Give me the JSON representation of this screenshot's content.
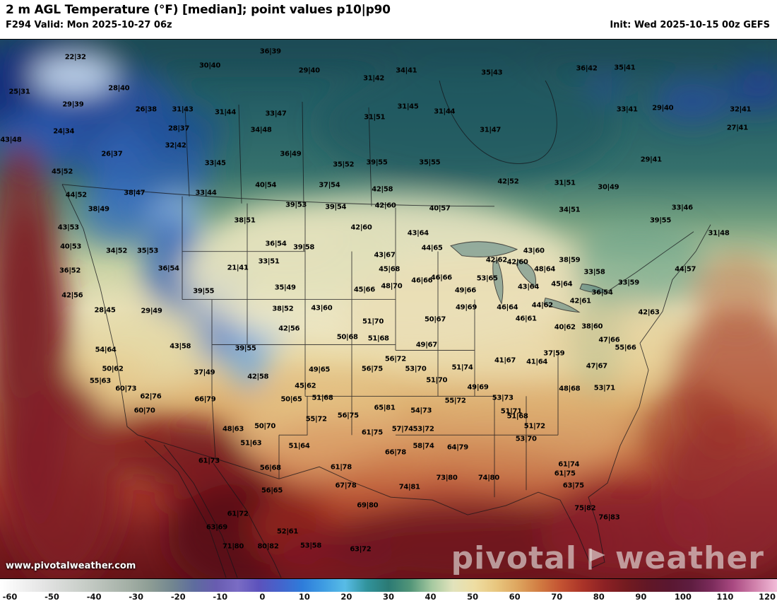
{
  "header": {
    "title": "2 m AGL Temperature (°F) [median]; point values p10|p90",
    "valid_label": "F294 Valid: Mon 2025-10-27 06z",
    "init_label": "Init: Wed 2025-10-15 00z GEFS"
  },
  "branding": {
    "watermark": "www.pivotalweather.com",
    "logo_left": "pivotal",
    "logo_right": "weather"
  },
  "colorbar": {
    "min": -60,
    "max": 120,
    "ticks": [
      -60,
      -50,
      -40,
      -30,
      -20,
      -10,
      0,
      10,
      20,
      30,
      40,
      50,
      60,
      70,
      80,
      90,
      100,
      110,
      120
    ],
    "stops": [
      [
        0,
        "#ffffff"
      ],
      [
        5.6,
        "#e4e4e4"
      ],
      [
        11.1,
        "#c6ccc6"
      ],
      [
        16.7,
        "#a2aea4"
      ],
      [
        19.4,
        "#8c9c94"
      ],
      [
        22.2,
        "#728690"
      ],
      [
        25,
        "#5e6c9e"
      ],
      [
        27.8,
        "#685cb0"
      ],
      [
        30.6,
        "#7a6cc4"
      ],
      [
        33.3,
        "#5c52bc"
      ],
      [
        36.1,
        "#4464cc"
      ],
      [
        38.9,
        "#2e7cda"
      ],
      [
        41.7,
        "#3f9de2"
      ],
      [
        44.4,
        "#58bce6"
      ],
      [
        47.2,
        "#31939c"
      ],
      [
        50,
        "#2b7a74"
      ],
      [
        52.8,
        "#529578"
      ],
      [
        55.6,
        "#a6c9a0"
      ],
      [
        58.3,
        "#e2e3bc"
      ],
      [
        61.1,
        "#eedda2"
      ],
      [
        63.9,
        "#e8c67e"
      ],
      [
        66.7,
        "#dda45e"
      ],
      [
        69.4,
        "#d17c42"
      ],
      [
        72.2,
        "#c35232"
      ],
      [
        75,
        "#aa3328"
      ],
      [
        77.8,
        "#8c2124"
      ],
      [
        80.6,
        "#731b20"
      ],
      [
        83.3,
        "#621726"
      ],
      [
        86.1,
        "#5a1730"
      ],
      [
        88.9,
        "#5e1d40"
      ],
      [
        91.7,
        "#7c2c5c"
      ],
      [
        94.4,
        "#aa4a82"
      ],
      [
        97.2,
        "#d182ac"
      ],
      [
        100,
        "#f2bcd8"
      ]
    ]
  },
  "map": {
    "units": "°F",
    "value_format": "p10|p90",
    "points": [
      [
        9.7,
        9.5,
        "22|32"
      ],
      [
        27.0,
        10.9,
        "30|40"
      ],
      [
        34.8,
        8.6,
        "36|39"
      ],
      [
        39.8,
        11.8,
        "29|40"
      ],
      [
        48.1,
        13.1,
        "31|42"
      ],
      [
        52.3,
        11.8,
        "34|41"
      ],
      [
        63.3,
        12.1,
        "35|43"
      ],
      [
        75.5,
        11.4,
        "36|42"
      ],
      [
        80.4,
        11.3,
        "35|41"
      ],
      [
        2.5,
        15.3,
        "25|31"
      ],
      [
        15.3,
        14.7,
        "28|40"
      ],
      [
        9.4,
        17.4,
        "29|39"
      ],
      [
        18.8,
        18.2,
        "26|38"
      ],
      [
        23.5,
        18.2,
        "31|43"
      ],
      [
        29.0,
        18.7,
        "31|44"
      ],
      [
        35.5,
        18.9,
        "33|47"
      ],
      [
        48.2,
        19.5,
        "31|51"
      ],
      [
        52.5,
        17.8,
        "31|45"
      ],
      [
        57.2,
        18.6,
        "31|44"
      ],
      [
        80.7,
        18.2,
        "33|41"
      ],
      [
        85.3,
        18.0,
        "29|40"
      ],
      [
        95.3,
        18.2,
        "32|41"
      ],
      [
        94.9,
        21.3,
        "27|41"
      ],
      [
        8.2,
        21.9,
        "24|34"
      ],
      [
        23.0,
        21.4,
        "28|37"
      ],
      [
        33.6,
        21.6,
        "34|48"
      ],
      [
        63.1,
        21.6,
        "31|47"
      ],
      [
        1.4,
        23.3,
        "43|48"
      ],
      [
        14.4,
        25.6,
        "26|37"
      ],
      [
        22.6,
        24.2,
        "32|42"
      ],
      [
        37.4,
        25.6,
        "36|49"
      ],
      [
        83.8,
        26.6,
        "29|41"
      ],
      [
        8.0,
        28.6,
        "45|52"
      ],
      [
        27.7,
        27.2,
        "33|45"
      ],
      [
        44.2,
        27.4,
        "35|52"
      ],
      [
        48.5,
        27.1,
        "39|55"
      ],
      [
        55.3,
        27.1,
        "35|55"
      ],
      [
        65.4,
        30.2,
        "42|52"
      ],
      [
        72.7,
        30.5,
        "31|51"
      ],
      [
        78.3,
        31.2,
        "30|49"
      ],
      [
        17.3,
        32.1,
        "38|47"
      ],
      [
        26.5,
        32.1,
        "33|44"
      ],
      [
        34.2,
        30.8,
        "40|54"
      ],
      [
        42.4,
        30.8,
        "37|54"
      ],
      [
        49.2,
        31.5,
        "42|58"
      ],
      [
        9.8,
        32.5,
        "44|52"
      ],
      [
        12.7,
        34.8,
        "38|49"
      ],
      [
        38.1,
        34.1,
        "39|53"
      ],
      [
        43.2,
        34.5,
        "39|54"
      ],
      [
        49.6,
        34.2,
        "42|60"
      ],
      [
        56.6,
        34.7,
        "40|57"
      ],
      [
        73.3,
        34.9,
        "34|51"
      ],
      [
        87.8,
        34.6,
        "33|46"
      ],
      [
        85.0,
        36.7,
        "39|55"
      ],
      [
        8.8,
        37.9,
        "43|53"
      ],
      [
        31.5,
        36.7,
        "38|51"
      ],
      [
        46.5,
        37.9,
        "42|60"
      ],
      [
        53.8,
        38.8,
        "43|64"
      ],
      [
        92.5,
        38.8,
        "31|48"
      ],
      [
        9.1,
        41.1,
        "40|53"
      ],
      [
        15.0,
        41.8,
        "34|52"
      ],
      [
        19.0,
        41.8,
        "35|53"
      ],
      [
        35.5,
        40.6,
        "36|54"
      ],
      [
        39.1,
        41.2,
        "39|58"
      ],
      [
        34.6,
        43.5,
        "33|51"
      ],
      [
        55.6,
        41.3,
        "44|65"
      ],
      [
        68.7,
        41.8,
        "43|60"
      ],
      [
        73.3,
        43.3,
        "38|59"
      ],
      [
        76.5,
        45.3,
        "33|58"
      ],
      [
        9.0,
        45.1,
        "36|52"
      ],
      [
        21.7,
        44.7,
        "36|54"
      ],
      [
        30.6,
        44.6,
        "21|41"
      ],
      [
        49.5,
        42.5,
        "43|67"
      ],
      [
        50.1,
        44.8,
        "45|68"
      ],
      [
        56.8,
        46.2,
        "46|66"
      ],
      [
        63.9,
        43.3,
        "42|62"
      ],
      [
        66.6,
        43.6,
        "42|60"
      ],
      [
        70.1,
        44.8,
        "48|64"
      ],
      [
        36.7,
        47.9,
        "35|49"
      ],
      [
        46.9,
        48.2,
        "45|66"
      ],
      [
        50.4,
        47.6,
        "48|70"
      ],
      [
        54.3,
        46.7,
        "46|66"
      ],
      [
        59.9,
        48.4,
        "49|66"
      ],
      [
        62.7,
        46.4,
        "53|65"
      ],
      [
        68.0,
        47.8,
        "43|64"
      ],
      [
        72.3,
        47.3,
        "45|64"
      ],
      [
        77.5,
        48.7,
        "36|54"
      ],
      [
        80.9,
        47.1,
        "33|59"
      ],
      [
        9.3,
        49.2,
        "42|56"
      ],
      [
        13.5,
        51.6,
        "28|45"
      ],
      [
        19.5,
        51.8,
        "29|49"
      ],
      [
        26.2,
        48.5,
        "39|55"
      ],
      [
        36.4,
        51.4,
        "38|52"
      ],
      [
        41.4,
        51.3,
        "43|60"
      ],
      [
        48.0,
        53.5,
        "51|70"
      ],
      [
        56.0,
        53.2,
        "50|67"
      ],
      [
        60.0,
        51.2,
        "49|69"
      ],
      [
        65.3,
        51.2,
        "46|64"
      ],
      [
        69.8,
        50.8,
        "44|62"
      ],
      [
        74.7,
        50.1,
        "42|61"
      ],
      [
        37.2,
        54.7,
        "42|56"
      ],
      [
        44.7,
        56.1,
        "50|68"
      ],
      [
        48.7,
        56.4,
        "51|68"
      ],
      [
        67.7,
        53.1,
        "46|61"
      ],
      [
        72.7,
        54.5,
        "40|62"
      ],
      [
        76.2,
        54.4,
        "38|60"
      ],
      [
        78.4,
        56.6,
        "47|66"
      ],
      [
        80.5,
        57.9,
        "55|66"
      ],
      [
        23.2,
        57.6,
        "43|58"
      ],
      [
        31.6,
        58.0,
        "39|55"
      ],
      [
        13.6,
        58.2,
        "54|64"
      ],
      [
        14.5,
        61.4,
        "50|62"
      ],
      [
        12.9,
        63.4,
        "55|63"
      ],
      [
        26.3,
        62.0,
        "37|49"
      ],
      [
        33.2,
        62.7,
        "42|58"
      ],
      [
        41.1,
        61.5,
        "49|65"
      ],
      [
        39.3,
        64.2,
        "45|62"
      ],
      [
        50.9,
        59.8,
        "56|72"
      ],
      [
        47.9,
        61.4,
        "56|75"
      ],
      [
        53.5,
        61.4,
        "53|70"
      ],
      [
        54.9,
        57.4,
        "49|67"
      ],
      [
        56.2,
        63.3,
        "51|70"
      ],
      [
        59.5,
        61.2,
        "51|74"
      ],
      [
        61.5,
        64.5,
        "49|69"
      ],
      [
        65.0,
        60.0,
        "41|67"
      ],
      [
        69.1,
        60.2,
        "41|64"
      ],
      [
        71.3,
        58.8,
        "37|59"
      ],
      [
        76.8,
        60.9,
        "47|67"
      ],
      [
        77.8,
        64.6,
        "53|71"
      ],
      [
        16.2,
        64.7,
        "60|73"
      ],
      [
        19.4,
        66.0,
        "62|76"
      ],
      [
        26.4,
        66.5,
        "66|79"
      ],
      [
        18.6,
        68.4,
        "60|70"
      ],
      [
        37.5,
        66.5,
        "50|65"
      ],
      [
        41.5,
        66.2,
        "51|68"
      ],
      [
        64.7,
        66.2,
        "53|73"
      ],
      [
        73.3,
        64.7,
        "48|68"
      ],
      [
        30.0,
        71.4,
        "48|63"
      ],
      [
        34.1,
        70.9,
        "50|70"
      ],
      [
        40.7,
        69.8,
        "55|72"
      ],
      [
        44.8,
        69.2,
        "56|75"
      ],
      [
        49.5,
        67.9,
        "65|81"
      ],
      [
        54.2,
        68.4,
        "54|73"
      ],
      [
        58.6,
        66.7,
        "55|72"
      ],
      [
        65.8,
        68.5,
        "51|71"
      ],
      [
        66.6,
        69.3,
        "51|68"
      ],
      [
        68.8,
        70.9,
        "51|72"
      ],
      [
        51.8,
        71.4,
        "57|74"
      ],
      [
        54.5,
        71.4,
        "53|72"
      ],
      [
        47.9,
        72.0,
        "61|75"
      ],
      [
        32.3,
        73.8,
        "51|63"
      ],
      [
        38.5,
        74.2,
        "51|64"
      ],
      [
        54.5,
        74.2,
        "58|74"
      ],
      [
        58.9,
        74.5,
        "64|79"
      ],
      [
        67.7,
        73.1,
        "53|70"
      ],
      [
        26.9,
        76.7,
        "61|73"
      ],
      [
        34.8,
        77.9,
        "56|68"
      ],
      [
        50.9,
        75.3,
        "66|78"
      ],
      [
        43.9,
        77.8,
        "61|78"
      ],
      [
        57.5,
        79.5,
        "73|80"
      ],
      [
        62.9,
        79.5,
        "74|80"
      ],
      [
        52.7,
        81.1,
        "74|81"
      ],
      [
        73.2,
        77.3,
        "61|74"
      ],
      [
        72.7,
        78.8,
        "61|75"
      ],
      [
        35.0,
        81.6,
        "56|65"
      ],
      [
        44.5,
        80.8,
        "67|78"
      ],
      [
        73.8,
        80.8,
        "63|75"
      ],
      [
        47.3,
        84.1,
        "69|80"
      ],
      [
        75.3,
        84.6,
        "75|82"
      ],
      [
        30.6,
        85.5,
        "61|72"
      ],
      [
        27.9,
        87.8,
        "63|69"
      ],
      [
        78.4,
        86.1,
        "76|83"
      ],
      [
        37.0,
        88.5,
        "52|61"
      ],
      [
        40.0,
        90.8,
        "53|58"
      ],
      [
        34.5,
        90.9,
        "80|82"
      ],
      [
        30.0,
        90.9,
        "71|80"
      ],
      [
        46.4,
        91.4,
        "63|72"
      ],
      [
        83.5,
        52.0,
        "42|63"
      ],
      [
        88.2,
        44.8,
        "44|57"
      ]
    ]
  }
}
